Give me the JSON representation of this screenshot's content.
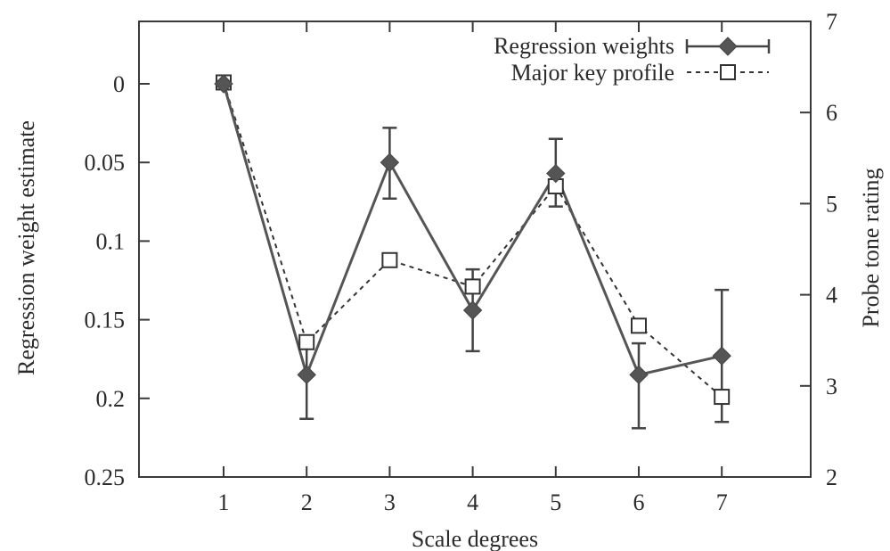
{
  "chart_data": {
    "type": "line",
    "title": "",
    "xlabel": "Scale degrees",
    "ylabel_left": "Regression weight estimate",
    "ylabel_right": "Probe tone rating",
    "categories": [
      1,
      2,
      3,
      4,
      5,
      6,
      7
    ],
    "x_ticks": [
      "1",
      "2",
      "3",
      "4",
      "5",
      "6",
      "7"
    ],
    "y_left_range": [
      0.25,
      -0.04
    ],
    "y_left_inverted": true,
    "y_left_ticks": [
      0,
      0.05,
      0.1,
      0.15,
      0.2,
      0.25
    ],
    "y_left_tick_labels": [
      "0",
      "0.05",
      "0.1",
      "0.15",
      "0.2",
      "0.25"
    ],
    "y_right_range": [
      2,
      7
    ],
    "y_right_ticks": [
      2,
      3,
      4,
      5,
      6,
      7
    ],
    "y_right_tick_labels": [
      "2",
      "3",
      "4",
      "5",
      "6",
      "7"
    ],
    "grid": false,
    "legend_position": "top-right",
    "series": [
      {
        "name": "Regression weights",
        "axis": "left",
        "style": "solid",
        "marker": "filled-diamond",
        "color": "#555555",
        "values": [
          0.0,
          0.185,
          0.05,
          0.144,
          0.057,
          0.185,
          0.173
        ],
        "error_low": [
          0.0,
          0.213,
          0.073,
          0.17,
          0.078,
          0.219,
          0.215
        ],
        "error_high": [
          0.0,
          0.165,
          0.028,
          0.118,
          0.035,
          0.165,
          0.131
        ]
      },
      {
        "name": "Major key profile",
        "axis": "right",
        "style": "dashed",
        "marker": "open-square",
        "color": "#333333",
        "values": [
          6.33,
          3.48,
          4.38,
          4.09,
          5.19,
          3.66,
          2.88
        ]
      }
    ]
  }
}
